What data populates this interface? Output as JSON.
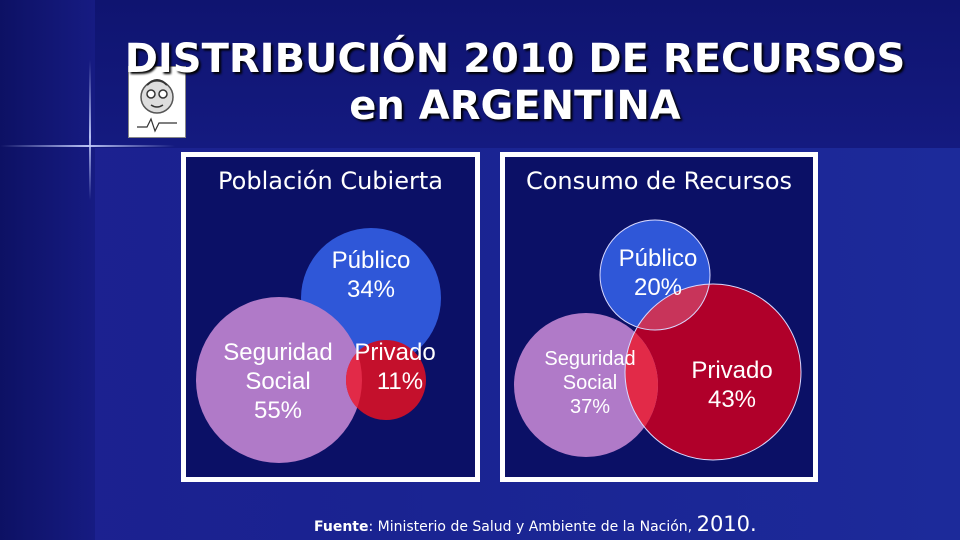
{
  "title": {
    "line1": "DISTRIBUCIÓN 2010 DE RECURSOS",
    "line2": "en ARGENTINA"
  },
  "left_panel": {
    "heading": "Población Cubierta",
    "publico": {
      "name": "Público",
      "value": "34%"
    },
    "seguridad": {
      "name_line1": "Seguridad",
      "name_line2": "Social",
      "value": "55%"
    },
    "privado": {
      "name": "Privado",
      "value": "11%"
    }
  },
  "right_panel": {
    "heading": "Consumo de Recursos",
    "publico": {
      "name": "Público",
      "value": "20%"
    },
    "seguridad": {
      "name_line1": "Seguridad",
      "name_line2": "Social",
      "value": "37%"
    },
    "privado": {
      "name": "Privado",
      "value": "43%"
    }
  },
  "footer": {
    "label": "Fuente",
    "text": ": Ministerio de Salud y Ambiente de la Nación, ",
    "year": "2010."
  },
  "colors": {
    "publico": "#2f57d8",
    "seguridad": "#b07ac8",
    "privado": "#c4102c",
    "overlap": "#e22a48"
  }
}
